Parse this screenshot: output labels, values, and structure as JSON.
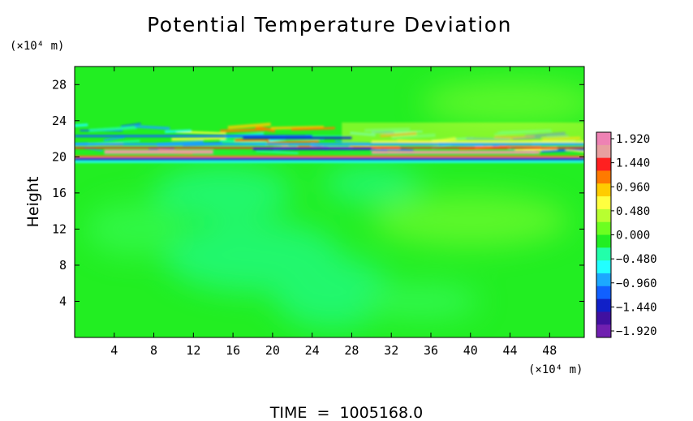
{
  "chart_data": {
    "type": "heatmap",
    "title": "Potential Temperature Deviation",
    "ylabel": "Height",
    "x_unit_label": "(×10⁴ m)",
    "y_unit_label": "(×10⁴ m)",
    "time_label": "TIME  =  1005168.0",
    "xlim": [
      0,
      51.5
    ],
    "ylim": [
      0,
      30
    ],
    "x_ticks": [
      4,
      8,
      12,
      16,
      20,
      24,
      28,
      32,
      36,
      40,
      44,
      48
    ],
    "y_ticks": [
      4,
      8,
      12,
      16,
      20,
      24,
      28
    ],
    "colorbar": {
      "ticks": [
        "1.920",
        "1.440",
        "0.960",
        "0.480",
        "0.000",
        "-0.480",
        "-0.960",
        "-1.440",
        "-1.920"
      ],
      "range": [
        -1.92,
        1.92
      ],
      "colors": [
        "#ee82b4",
        "#e8a0a0",
        "#ff2020",
        "#ff7a00",
        "#ffcc00",
        "#ffff40",
        "#b8ff30",
        "#6cff20",
        "#22ee22",
        "#22ffaa",
        "#22ffff",
        "#1ca8ff",
        "#1060ff",
        "#1020c8",
        "#4010a0",
        "#7020b0"
      ]
    },
    "field_description": {
      "background_value": 0.0,
      "inversion_height": 20.0,
      "inversion_band": [
        19.2,
        23.5
      ]
    }
  }
}
